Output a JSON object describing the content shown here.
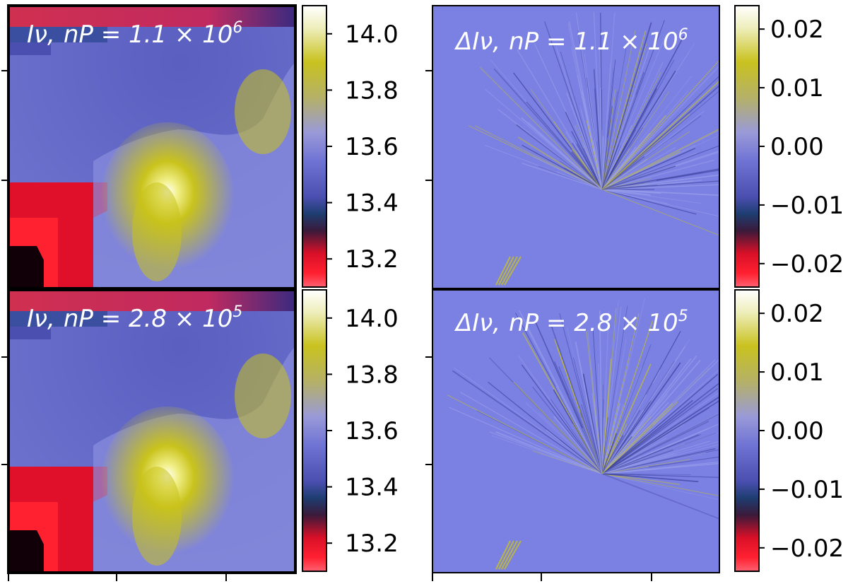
{
  "colors": {
    "map_stops": [
      "#ffffff",
      "#e6e6b0",
      "#c9c21f",
      "#b8b34e",
      "#9a9ad8",
      "#6d70d2",
      "#3e41a0",
      "#1b3a6e",
      "#3a1a3a",
      "#d81028",
      "#ff1a1a",
      "#f23a5a"
    ],
    "residual_bg": "#7b81e3",
    "intensity_bg": "#6e73cf",
    "red_region": "#e0102a",
    "dark_region": "#120008",
    "feature_yellow": "#c9c31c"
  },
  "panels": [
    {
      "id": "top-left",
      "label_quantity": "Iν,",
      "label_n": "nP = 1.1 × 10",
      "label_exp": "6",
      "colorbar_ticks": [
        "14.0",
        "13.8",
        "13.6",
        "13.4",
        "13.2"
      ],
      "colorbar_range": [
        13.1,
        14.1
      ]
    },
    {
      "id": "top-right",
      "label_quantity": "ΔIν,",
      "label_n": "nP = 1.1 × 10",
      "label_exp": "6",
      "colorbar_ticks": [
        "0.02",
        "0.01",
        "0.00",
        "−0.01",
        "−0.02"
      ],
      "colorbar_range": [
        -0.024,
        0.024
      ]
    },
    {
      "id": "bottom-left",
      "label_quantity": "Iν,",
      "label_n": "nP = 2.8 × 10",
      "label_exp": "5",
      "colorbar_ticks": [
        "14.0",
        "13.8",
        "13.6",
        "13.4",
        "13.2"
      ],
      "colorbar_range": [
        13.1,
        14.1
      ]
    },
    {
      "id": "bottom-right",
      "label_quantity": "ΔIν,",
      "label_n": "nP = 2.8 × 10",
      "label_exp": "5",
      "colorbar_ticks": [
        "0.02",
        "0.01",
        "0.00",
        "−0.01",
        "−0.02"
      ],
      "colorbar_range": [
        -0.024,
        0.024
      ]
    }
  ],
  "chart_data": [
    {
      "type": "heatmap",
      "title": "",
      "annotation": "Iν, nP = 1.1 × 10^6",
      "colorbar_ticks": [
        14.0,
        13.8,
        13.6,
        13.4,
        13.2
      ],
      "colorbar_range": [
        13.1,
        14.1
      ],
      "xlabel": "",
      "ylabel": ""
    },
    {
      "type": "heatmap",
      "title": "",
      "annotation": "ΔIν, nP = 1.1 × 10^6",
      "colorbar_ticks": [
        0.02,
        0.01,
        0.0,
        -0.01,
        -0.02
      ],
      "colorbar_range": [
        -0.024,
        0.024
      ],
      "xlabel": "",
      "ylabel": ""
    },
    {
      "type": "heatmap",
      "title": "",
      "annotation": "Iν, nP = 2.8 × 10^5",
      "colorbar_ticks": [
        14.0,
        13.8,
        13.6,
        13.4,
        13.2
      ],
      "colorbar_range": [
        13.1,
        14.1
      ],
      "xlabel": "",
      "ylabel": ""
    },
    {
      "type": "heatmap",
      "title": "",
      "annotation": "ΔIν, nP = 2.8 × 10^5",
      "colorbar_ticks": [
        0.02,
        0.01,
        0.0,
        -0.01,
        -0.02
      ],
      "colorbar_range": [
        -0.024,
        0.024
      ],
      "xlabel": "",
      "ylabel": ""
    }
  ]
}
